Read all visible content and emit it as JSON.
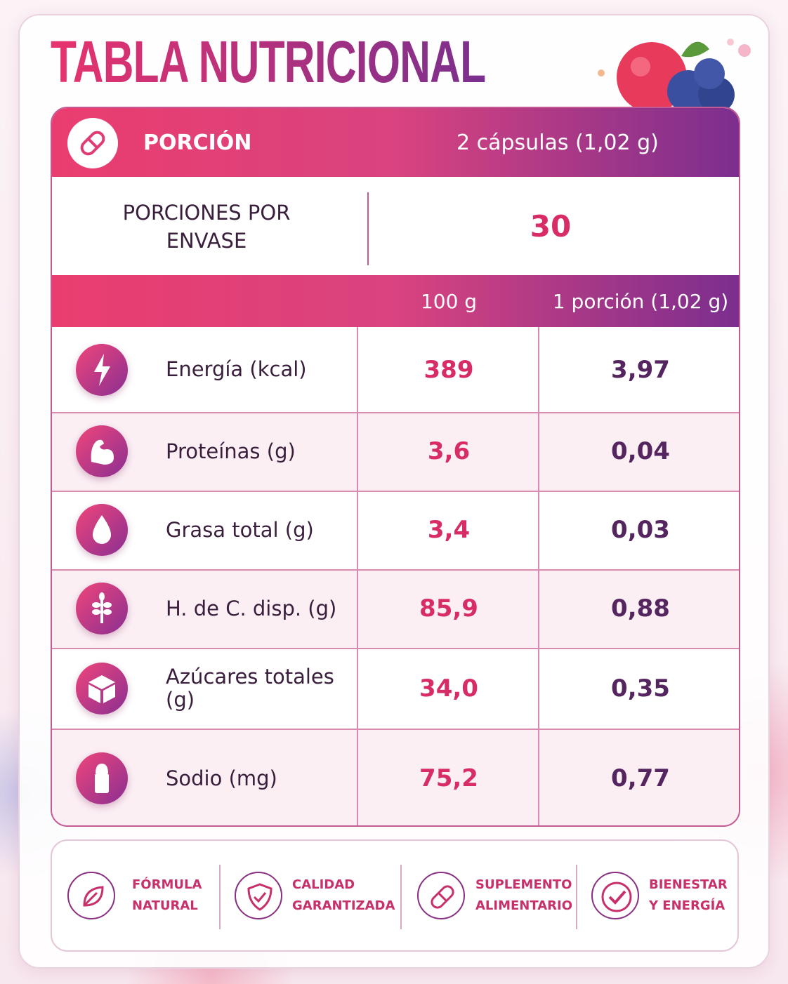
{
  "title": "TABLA NUTRICIONAL",
  "serving": {
    "label": "PORCIÓN",
    "value": "2 cápsulas (1,02 g)"
  },
  "servings_per_container": {
    "label": "PORCIONES POR ENVASE",
    "value": 30
  },
  "table": {
    "columns": [
      "100 g",
      "1 porción (1,02 g)"
    ],
    "rows": [
      {
        "name": "Energía (kcal)",
        "per_100g": "389",
        "per_serving": "3,97"
      },
      {
        "name": "Proteínas (g)",
        "per_100g": "3,6",
        "per_serving": "0,04"
      },
      {
        "name": "Grasa total (g)",
        "per_100g": "3,4",
        "per_serving": "0,03"
      },
      {
        "name": "H. de C. disp. (g)",
        "per_100g": "85,9",
        "per_serving": "0,88"
      },
      {
        "name": "Azúcares totales (g)",
        "per_100g": "34,0",
        "per_serving": "0,35"
      },
      {
        "name": "Sodio (mg)",
        "per_100g": "75,2",
        "per_serving": "0,77"
      }
    ]
  },
  "badges": [
    {
      "lines": [
        "FÓRMULA",
        "NATURAL"
      ]
    },
    {
      "lines": [
        "CALIDAD",
        "GARANTIZADA"
      ]
    },
    {
      "lines": [
        "SUPLEMENTO",
        "ALIMENTARIO"
      ]
    },
    {
      "lines": [
        "BIENESTAR",
        "Y ENERGÍA"
      ]
    }
  ]
}
